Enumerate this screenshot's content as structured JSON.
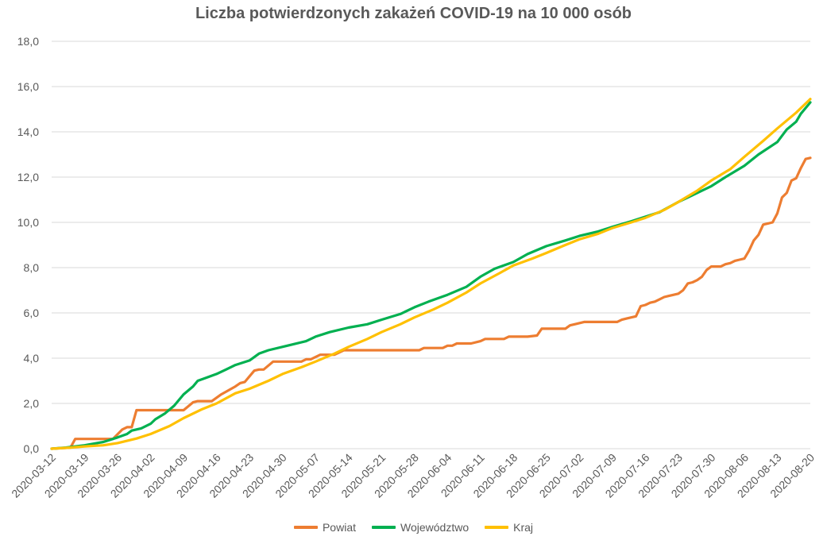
{
  "chart_data": {
    "type": "line",
    "title": "Liczba potwierdzonych zakażeń COVID-19 na 10 000 osób",
    "xlabel": "",
    "ylabel": "",
    "ylim": [
      0,
      18
    ],
    "yticks": [
      "0,0",
      "2,0",
      "4,0",
      "6,0",
      "8,0",
      "10,0",
      "12,0",
      "14,0",
      "16,0",
      "18,0"
    ],
    "ytick_values": [
      0,
      2,
      4,
      6,
      8,
      10,
      12,
      14,
      16,
      18
    ],
    "xlim": [
      "2020-03-12",
      "2020-08-20"
    ],
    "xticks": [
      "2020-03-12",
      "2020-03-19",
      "2020-03-26",
      "2020-04-02",
      "2020-04-09",
      "2020-04-16",
      "2020-04-23",
      "2020-04-30",
      "2020-05-07",
      "2020-05-14",
      "2020-05-21",
      "2020-05-28",
      "2020-06-04",
      "2020-06-11",
      "2020-06-18",
      "2020-06-25",
      "2020-07-02",
      "2020-07-09",
      "2020-07-16",
      "2020-07-23",
      "2020-07-30",
      "2020-08-06",
      "2020-08-13",
      "2020-08-20"
    ],
    "grid": true,
    "legend_position": "bottom",
    "series": [
      {
        "name": "Powiat",
        "color": "#ED7D31",
        "points": [
          [
            "2020-03-12",
            0.0
          ],
          [
            "2020-03-16",
            0.05
          ],
          [
            "2020-03-17",
            0.43
          ],
          [
            "2020-03-25",
            0.43
          ],
          [
            "2020-03-27",
            0.85
          ],
          [
            "2020-03-28",
            0.95
          ],
          [
            "2020-03-29",
            0.95
          ],
          [
            "2020-03-30",
            1.7
          ],
          [
            "2020-04-09",
            1.7
          ],
          [
            "2020-04-11",
            2.05
          ],
          [
            "2020-04-12",
            2.1
          ],
          [
            "2020-04-15",
            2.1
          ],
          [
            "2020-04-17",
            2.4
          ],
          [
            "2020-04-20",
            2.75
          ],
          [
            "2020-04-21",
            2.9
          ],
          [
            "2020-04-22",
            2.95
          ],
          [
            "2020-04-24",
            3.45
          ],
          [
            "2020-04-25",
            3.5
          ],
          [
            "2020-04-26",
            3.5
          ],
          [
            "2020-04-28",
            3.85
          ],
          [
            "2020-05-04",
            3.85
          ],
          [
            "2020-05-05",
            3.95
          ],
          [
            "2020-05-06",
            3.95
          ],
          [
            "2020-05-08",
            4.15
          ],
          [
            "2020-05-11",
            4.15
          ],
          [
            "2020-05-13",
            4.35
          ],
          [
            "2020-05-29",
            4.35
          ],
          [
            "2020-05-30",
            4.45
          ],
          [
            "2020-06-03",
            4.45
          ],
          [
            "2020-06-04",
            4.55
          ],
          [
            "2020-06-05",
            4.55
          ],
          [
            "2020-06-06",
            4.65
          ],
          [
            "2020-06-09",
            4.65
          ],
          [
            "2020-06-11",
            4.75
          ],
          [
            "2020-06-12",
            4.85
          ],
          [
            "2020-06-16",
            4.85
          ],
          [
            "2020-06-17",
            4.95
          ],
          [
            "2020-06-21",
            4.95
          ],
          [
            "2020-06-23",
            5.0
          ],
          [
            "2020-06-24",
            5.3
          ],
          [
            "2020-06-29",
            5.3
          ],
          [
            "2020-06-30",
            5.45
          ],
          [
            "2020-07-01",
            5.5
          ],
          [
            "2020-07-03",
            5.6
          ],
          [
            "2020-07-10",
            5.6
          ],
          [
            "2020-07-11",
            5.7
          ],
          [
            "2020-07-12",
            5.75
          ],
          [
            "2020-07-13",
            5.8
          ],
          [
            "2020-07-14",
            5.85
          ],
          [
            "2020-07-15",
            6.3
          ],
          [
            "2020-07-16",
            6.35
          ],
          [
            "2020-07-17",
            6.45
          ],
          [
            "2020-07-18",
            6.5
          ],
          [
            "2020-07-19",
            6.6
          ],
          [
            "2020-07-20",
            6.7
          ],
          [
            "2020-07-21",
            6.75
          ],
          [
            "2020-07-22",
            6.8
          ],
          [
            "2020-07-23",
            6.85
          ],
          [
            "2020-07-24",
            7.0
          ],
          [
            "2020-07-25",
            7.3
          ],
          [
            "2020-07-26",
            7.35
          ],
          [
            "2020-07-27",
            7.45
          ],
          [
            "2020-07-28",
            7.6
          ],
          [
            "2020-07-29",
            7.9
          ],
          [
            "2020-07-30",
            8.05
          ],
          [
            "2020-08-01",
            8.05
          ],
          [
            "2020-08-02",
            8.15
          ],
          [
            "2020-08-03",
            8.2
          ],
          [
            "2020-08-04",
            8.3
          ],
          [
            "2020-08-05",
            8.35
          ],
          [
            "2020-08-06",
            8.4
          ],
          [
            "2020-08-07",
            8.75
          ],
          [
            "2020-08-08",
            9.2
          ],
          [
            "2020-08-09",
            9.45
          ],
          [
            "2020-08-10",
            9.9
          ],
          [
            "2020-08-11",
            9.95
          ],
          [
            "2020-08-12",
            10.0
          ],
          [
            "2020-08-13",
            10.4
          ],
          [
            "2020-08-14",
            11.1
          ],
          [
            "2020-08-15",
            11.3
          ],
          [
            "2020-08-16",
            11.85
          ],
          [
            "2020-08-17",
            11.95
          ],
          [
            "2020-08-18",
            12.4
          ],
          [
            "2020-08-19",
            12.8
          ],
          [
            "2020-08-20",
            12.85
          ]
        ]
      },
      {
        "name": "Województwo",
        "color": "#00B050",
        "points": [
          [
            "2020-03-12",
            0.0
          ],
          [
            "2020-03-15",
            0.05
          ],
          [
            "2020-03-19",
            0.15
          ],
          [
            "2020-03-23",
            0.3
          ],
          [
            "2020-03-26",
            0.5
          ],
          [
            "2020-03-28",
            0.65
          ],
          [
            "2020-03-29",
            0.8
          ],
          [
            "2020-03-31",
            0.9
          ],
          [
            "2020-04-02",
            1.1
          ],
          [
            "2020-04-03",
            1.3
          ],
          [
            "2020-04-05",
            1.55
          ],
          [
            "2020-04-07",
            1.9
          ],
          [
            "2020-04-09",
            2.4
          ],
          [
            "2020-04-11",
            2.75
          ],
          [
            "2020-04-12",
            3.0
          ],
          [
            "2020-04-14",
            3.15
          ],
          [
            "2020-04-16",
            3.3
          ],
          [
            "2020-04-18",
            3.5
          ],
          [
            "2020-04-20",
            3.7
          ],
          [
            "2020-04-23",
            3.9
          ],
          [
            "2020-04-25",
            4.2
          ],
          [
            "2020-04-27",
            4.35
          ],
          [
            "2020-05-01",
            4.55
          ],
          [
            "2020-05-05",
            4.75
          ],
          [
            "2020-05-07",
            4.95
          ],
          [
            "2020-05-10",
            5.15
          ],
          [
            "2020-05-14",
            5.35
          ],
          [
            "2020-05-18",
            5.5
          ],
          [
            "2020-05-21",
            5.7
          ],
          [
            "2020-05-25",
            5.95
          ],
          [
            "2020-05-28",
            6.25
          ],
          [
            "2020-05-31",
            6.5
          ],
          [
            "2020-06-04",
            6.8
          ],
          [
            "2020-06-08",
            7.15
          ],
          [
            "2020-06-11",
            7.6
          ],
          [
            "2020-06-14",
            7.95
          ],
          [
            "2020-06-18",
            8.25
          ],
          [
            "2020-06-21",
            8.6
          ],
          [
            "2020-06-25",
            8.95
          ],
          [
            "2020-06-29",
            9.2
          ],
          [
            "2020-07-02",
            9.4
          ],
          [
            "2020-07-06",
            9.6
          ],
          [
            "2020-07-09",
            9.8
          ],
          [
            "2020-07-13",
            10.05
          ],
          [
            "2020-07-16",
            10.25
          ],
          [
            "2020-07-19",
            10.45
          ],
          [
            "2020-07-23",
            10.9
          ],
          [
            "2020-07-26",
            11.2
          ],
          [
            "2020-07-30",
            11.6
          ],
          [
            "2020-08-02",
            12.0
          ],
          [
            "2020-08-06",
            12.5
          ],
          [
            "2020-08-09",
            13.0
          ],
          [
            "2020-08-13",
            13.55
          ],
          [
            "2020-08-15",
            14.1
          ],
          [
            "2020-08-17",
            14.45
          ],
          [
            "2020-08-18",
            14.8
          ],
          [
            "2020-08-20",
            15.3
          ]
        ]
      },
      {
        "name": "Kraj",
        "color": "#FFC000",
        "points": [
          [
            "2020-03-12",
            0.0
          ],
          [
            "2020-03-16",
            0.05
          ],
          [
            "2020-03-19",
            0.1
          ],
          [
            "2020-03-23",
            0.15
          ],
          [
            "2020-03-26",
            0.25
          ],
          [
            "2020-03-30",
            0.45
          ],
          [
            "2020-04-02",
            0.65
          ],
          [
            "2020-04-06",
            1.0
          ],
          [
            "2020-04-09",
            1.35
          ],
          [
            "2020-04-13",
            1.75
          ],
          [
            "2020-04-16",
            2.0
          ],
          [
            "2020-04-20",
            2.45
          ],
          [
            "2020-04-23",
            2.65
          ],
          [
            "2020-04-27",
            3.0
          ],
          [
            "2020-04-30",
            3.3
          ],
          [
            "2020-05-04",
            3.6
          ],
          [
            "2020-05-07",
            3.85
          ],
          [
            "2020-05-11",
            4.2
          ],
          [
            "2020-05-14",
            4.5
          ],
          [
            "2020-05-18",
            4.85
          ],
          [
            "2020-05-21",
            5.15
          ],
          [
            "2020-05-25",
            5.5
          ],
          [
            "2020-05-28",
            5.8
          ],
          [
            "2020-06-01",
            6.15
          ],
          [
            "2020-06-04",
            6.45
          ],
          [
            "2020-06-08",
            6.9
          ],
          [
            "2020-06-11",
            7.3
          ],
          [
            "2020-06-15",
            7.75
          ],
          [
            "2020-06-18",
            8.1
          ],
          [
            "2020-06-22",
            8.4
          ],
          [
            "2020-06-25",
            8.65
          ],
          [
            "2020-06-29",
            9.0
          ],
          [
            "2020-07-02",
            9.25
          ],
          [
            "2020-07-06",
            9.5
          ],
          [
            "2020-07-09",
            9.75
          ],
          [
            "2020-07-13",
            10.0
          ],
          [
            "2020-07-16",
            10.2
          ],
          [
            "2020-07-20",
            10.55
          ],
          [
            "2020-07-23",
            10.9
          ],
          [
            "2020-07-27",
            11.4
          ],
          [
            "2020-07-30",
            11.85
          ],
          [
            "2020-08-03",
            12.35
          ],
          [
            "2020-08-06",
            12.9
          ],
          [
            "2020-08-10",
            13.6
          ],
          [
            "2020-08-13",
            14.15
          ],
          [
            "2020-08-17",
            14.85
          ],
          [
            "2020-08-20",
            15.45
          ]
        ]
      }
    ]
  }
}
